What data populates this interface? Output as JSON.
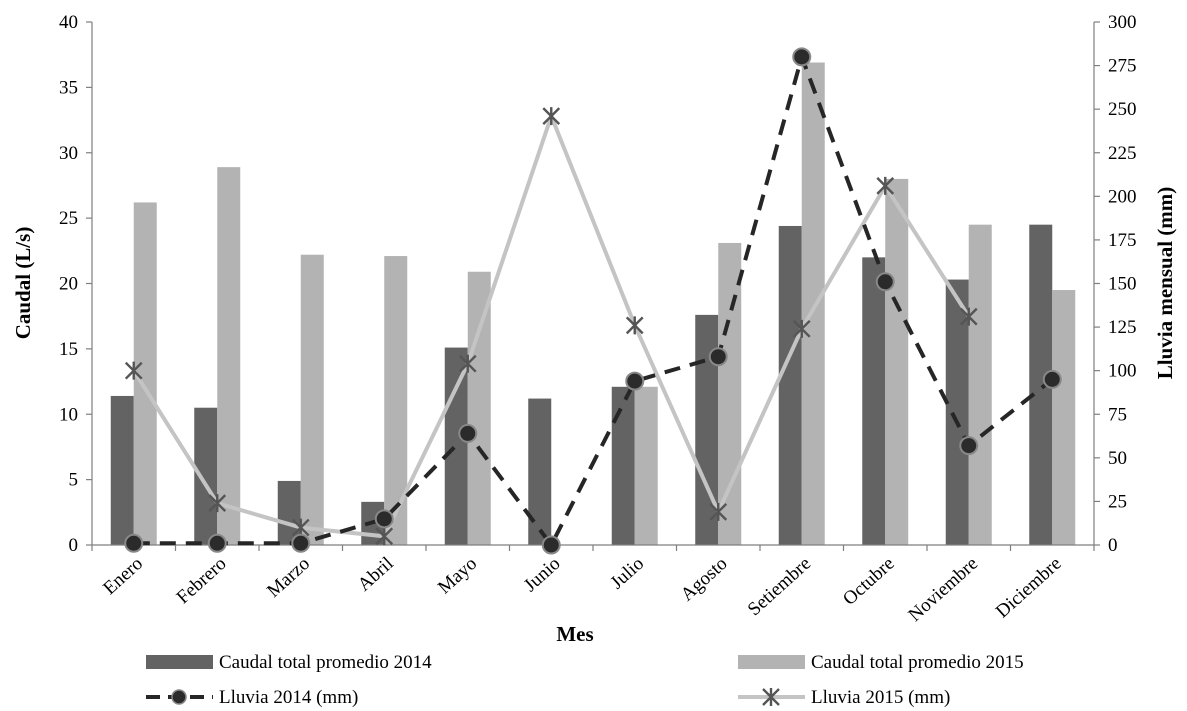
{
  "chart_data": {
    "type": "bar",
    "categories": [
      "Enero",
      "Febrero",
      "Marzo",
      "Abril",
      "Mayo",
      "Junio",
      "Julio",
      "Agosto",
      "Setiembre",
      "Octubre",
      "Noviembre",
      "Diciembre"
    ],
    "series": [
      {
        "name": "Caudal total promedio 2014",
        "kind": "bar",
        "axis": "left",
        "color": "#636363",
        "values": [
          11.4,
          10.5,
          4.9,
          3.3,
          15.1,
          11.2,
          12.1,
          17.6,
          24.4,
          22.0,
          20.3,
          24.5
        ]
      },
      {
        "name": "Caudal total promedio 2015",
        "kind": "bar",
        "axis": "left",
        "color": "#b3b3b3",
        "values": [
          26.2,
          28.9,
          22.2,
          22.1,
          20.9,
          null,
          12.1,
          23.1,
          36.9,
          28.0,
          24.5,
          19.5
        ]
      },
      {
        "name": "Lluvia  2014  (mm)",
        "kind": "line",
        "style": "dashed-circle",
        "axis": "right",
        "color": "#262626",
        "values": [
          1,
          1,
          1,
          15,
          64,
          0,
          94,
          108,
          280,
          151,
          57,
          95
        ]
      },
      {
        "name": "Lluvia  2015  (mm)",
        "kind": "line",
        "style": "solid-star",
        "axis": "right",
        "color": "#bdbdbd",
        "values": [
          100,
          24,
          10,
          5,
          104,
          246,
          126,
          19,
          124,
          206,
          131,
          null
        ]
      }
    ],
    "xlabel": "Mes",
    "ylabel": "Caudal (L/s)",
    "y2label": "Lluvia mensual (mm)",
    "ylim": [
      0,
      40
    ],
    "y2lim": [
      0,
      300
    ],
    "yticks": [
      "0",
      "5",
      "10",
      "15",
      "20",
      "25",
      "30",
      "35",
      "40"
    ],
    "y2ticks": [
      "0",
      "25",
      "50",
      "75",
      "100",
      "125",
      "150",
      "175",
      "200",
      "225",
      "250",
      "275",
      "300"
    ],
    "grid": false,
    "legend_position": "bottom"
  }
}
